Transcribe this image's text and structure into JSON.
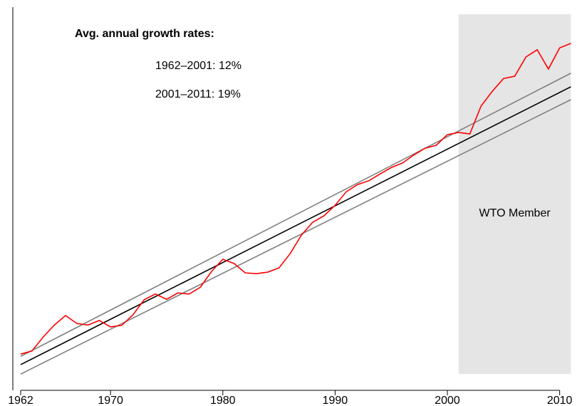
{
  "chart_data": {
    "type": "line",
    "x": [
      1962,
      1963,
      1964,
      1965,
      1966,
      1967,
      1968,
      1969,
      1970,
      1971,
      1972,
      1973,
      1974,
      1975,
      1976,
      1977,
      1978,
      1979,
      1980,
      1981,
      1982,
      1983,
      1984,
      1985,
      1986,
      1987,
      1988,
      1989,
      1990,
      1991,
      1992,
      1993,
      1994,
      1995,
      1996,
      1997,
      1998,
      1999,
      2000,
      2001,
      2002,
      2003,
      2004,
      2005,
      2006,
      2007,
      2008,
      2009,
      2010,
      2011
    ],
    "series": [
      {
        "color": "#ff0000",
        "values": [
          8.1,
          8.9,
          12.6,
          15.8,
          18.3,
          16.2,
          15.8,
          17.0,
          15.3,
          15.7,
          18.5,
          22.5,
          24.0,
          22.6,
          24.3,
          24.0,
          25.8,
          30.0,
          33.2,
          32.1,
          29.6,
          29.4,
          29.8,
          30.9,
          34.7,
          39.6,
          43.0,
          44.7,
          47.5,
          51.1,
          53.0,
          54.0,
          55.8,
          57.5,
          58.7,
          60.8,
          62.6,
          63.4,
          66.2,
          66.8,
          66.4,
          73.8,
          77.7,
          81.1,
          81.7,
          86.8,
          88.7,
          83.6,
          89.2,
          90.4
        ]
      }
    ],
    "trend_lines": [
      {
        "color": "#000000",
        "x": [
          1962,
          2011
        ],
        "values": [
          5.3,
          78.9
        ]
      },
      {
        "color": "#808080",
        "x": [
          1962,
          2011
        ],
        "values": [
          7.5,
          82.5
        ]
      },
      {
        "color": "#808080",
        "x": [
          1962,
          2011
        ],
        "values": [
          2.8,
          75.5
        ]
      }
    ],
    "shaded_region": {
      "x": [
        2001,
        2011
      ],
      "label": "WTO Member",
      "color": "#e5e5e5"
    },
    "annotation": {
      "title": "Avg. annual growth rates:",
      "lines": [
        "1962–2001: 12%",
        "2001–2011: 19%"
      ]
    },
    "xlim": [
      1961.3,
      2011.1
    ],
    "xticks": [
      1962,
      1970,
      1980,
      1990,
      2000,
      2010
    ],
    "ylim": [
      0,
      100
    ]
  }
}
